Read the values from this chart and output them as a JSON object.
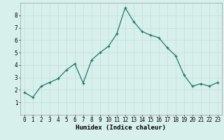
{
  "x": [
    0,
    1,
    2,
    3,
    4,
    5,
    6,
    7,
    8,
    9,
    10,
    11,
    12,
    13,
    14,
    15,
    16,
    17,
    18,
    19,
    20,
    21,
    22,
    23
  ],
  "y": [
    1.8,
    1.4,
    2.3,
    2.6,
    2.9,
    3.6,
    4.1,
    2.55,
    4.4,
    5.0,
    5.5,
    6.5,
    8.6,
    7.5,
    6.7,
    6.4,
    6.2,
    5.4,
    4.75,
    3.2,
    2.3,
    2.5,
    2.3,
    2.6
  ],
  "line_color": "#1a7a6a",
  "marker": "+",
  "marker_size": 3,
  "linewidth": 0.9,
  "xlabel": "Humidex (Indice chaleur)",
  "xlabel_fontsize": 6.5,
  "ylim": [
    0,
    9
  ],
  "xlim": [
    -0.5,
    23.5
  ],
  "yticks": [
    1,
    2,
    3,
    4,
    5,
    6,
    7,
    8
  ],
  "xticks": [
    0,
    1,
    2,
    3,
    4,
    5,
    6,
    7,
    8,
    9,
    10,
    11,
    12,
    13,
    14,
    15,
    16,
    17,
    18,
    19,
    20,
    21,
    22,
    23
  ],
  "grid_color": "#c0ddd8",
  "bg_color": "#d8f0ec",
  "tick_fontsize": 5.5
}
